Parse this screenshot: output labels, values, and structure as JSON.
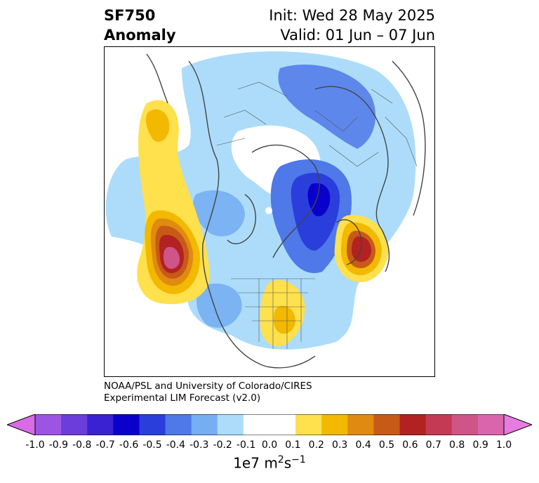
{
  "title": {
    "left_line1": "SF750",
    "left_line2": "Anomaly",
    "right_line1": "Init: Wed 28 May 2025",
    "right_line2": "Valid: 01 Jun – 07 Jun"
  },
  "credit": {
    "line1": "NOAA/PSL and University of Colorado/CIRES",
    "line2": "Experimental LIM Forecast (v2.0)"
  },
  "colorbar": {
    "ticks": [
      "-1.0",
      "-0.9",
      "-0.8",
      "-0.7",
      "-0.6",
      "-0.5",
      "-0.4",
      "-0.3",
      "-0.2",
      "-0.1",
      "0.0",
      "0.1",
      "0.2",
      "0.3",
      "0.4",
      "0.5",
      "0.6",
      "0.7",
      "0.8",
      "0.9",
      "1.0"
    ],
    "colors": [
      "#9b55e2",
      "#6b3ddb",
      "#3a22d2",
      "#0a00cc",
      "#2a3edc",
      "#4f78e8",
      "#75aef2",
      "#acdcfa",
      "#ffffff",
      "#ffffff",
      "#ffe04d",
      "#f3b800",
      "#e08a12",
      "#c85a17",
      "#b22222",
      "#c43a55",
      "#cf5588",
      "#d965ad"
    ],
    "under_color": "#d96ce6",
    "over_color": "#e77be0",
    "units": "1e7 m",
    "units_exp1": "2",
    "units_mid": "s",
    "units_exp2": "−1"
  },
  "map": {
    "projection": "north-polar-stereographic",
    "features": [
      "coastlines",
      "country-borders",
      "us-state-borders"
    ],
    "anomalies": [
      {
        "region": "Gulf of Alaska / NE Pacific",
        "sign": "positive",
        "peak": 0.8
      },
      {
        "region": "Western Europe / Bay of Biscay",
        "sign": "positive",
        "peak": 0.6
      },
      {
        "region": "Eastern United States",
        "sign": "positive",
        "peak": 0.2
      },
      {
        "region": "Barents-Kara Sea / northern Scandinavia",
        "sign": "negative",
        "peak": -0.6
      },
      {
        "region": "Arctic / high latitudes",
        "sign": "negative",
        "peak": -0.3
      }
    ]
  }
}
